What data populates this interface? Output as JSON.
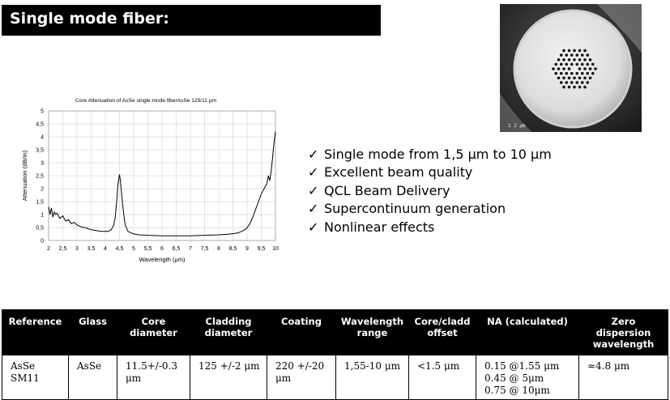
{
  "header": {
    "title": "Single mode fiber:"
  },
  "photo": {
    "caption": "1 2  μm"
  },
  "chart_data": {
    "type": "line",
    "title": "Core Attenuation of AsSe single mode  fiberAsSe 125/11 μm",
    "xlabel": "Wavelength (μm)",
    "ylabel": "Attenuation (dB/m)",
    "xlim": [
      2,
      10
    ],
    "ylim": [
      0,
      5
    ],
    "xticks": [
      "2",
      "2,5",
      "3",
      "3,5",
      "4",
      "4,5",
      "5",
      "5,5",
      "6",
      "6,5",
      "7",
      "7,5",
      "8",
      "8,5",
      "9",
      "9,5",
      "10"
    ],
    "yticks": [
      "0",
      "0,5",
      "1",
      "1,5",
      "2",
      "2,5",
      "3",
      "3,5",
      "4",
      "4,5",
      "5"
    ],
    "grid": true,
    "line_color": "#000000",
    "series": [
      {
        "x": [
          2.0,
          2.05,
          2.1,
          2.15,
          2.2,
          2.25,
          2.3,
          2.4,
          2.5,
          2.6,
          2.7,
          2.8,
          2.9,
          3.0,
          3.1,
          3.2,
          3.3,
          3.4,
          3.5,
          3.6,
          3.7,
          3.8,
          3.9,
          4.0,
          4.1,
          4.2,
          4.3,
          4.35,
          4.4,
          4.45,
          4.5,
          4.52,
          4.55,
          4.6,
          4.65,
          4.7,
          4.8,
          4.9,
          5.0,
          5.2,
          5.5,
          6.0,
          6.5,
          7.0,
          7.5,
          8.0,
          8.3,
          8.5,
          8.7,
          8.9,
          9.0,
          9.1,
          9.2,
          9.3,
          9.4,
          9.5,
          9.6,
          9.7,
          9.75,
          9.8,
          9.85,
          9.9,
          9.95,
          10.0
        ],
        "y": [
          1.3,
          1.0,
          1.25,
          0.9,
          1.1,
          1.0,
          1.05,
          0.85,
          0.95,
          0.75,
          0.8,
          0.65,
          0.7,
          0.6,
          0.55,
          0.5,
          0.5,
          0.45,
          0.42,
          0.4,
          0.38,
          0.36,
          0.35,
          0.35,
          0.35,
          0.4,
          0.6,
          0.9,
          1.5,
          2.2,
          2.55,
          2.4,
          2.1,
          1.5,
          1.0,
          0.6,
          0.35,
          0.3,
          0.25,
          0.22,
          0.2,
          0.18,
          0.18,
          0.18,
          0.2,
          0.22,
          0.24,
          0.26,
          0.3,
          0.4,
          0.5,
          0.65,
          0.9,
          1.2,
          1.5,
          1.8,
          2.0,
          2.2,
          2.5,
          2.3,
          2.7,
          3.2,
          3.8,
          4.2
        ]
      }
    ]
  },
  "bullets": [
    "Single mode from 1,5 μm to 10 μm",
    "Excellent beam quality",
    "QCL  Beam Delivery",
    "Supercontinuum generation",
    "Nonlinear effects"
  ],
  "check_mark": "✓",
  "table": {
    "headers": [
      "Reference",
      "Glass",
      "Core diameter",
      "Cladding diameter",
      "Coating",
      "Wavelength range",
      "Core/cladd offset",
      "NA (calculated)",
      "Zero dispersion wavelength"
    ],
    "row": [
      "AsSe SM11",
      "AsSe",
      "11.5+/-0.3 μm",
      "125 +/-2 μm",
      "220 +/-20 μm",
      "1,55-10 μm",
      "<1.5 μm",
      "0.15 @1.55 μm\n0.45 @ 5μm\n0.75 @ 10μm",
      "≈4.8 μm"
    ],
    "header_bg": "#000000"
  }
}
